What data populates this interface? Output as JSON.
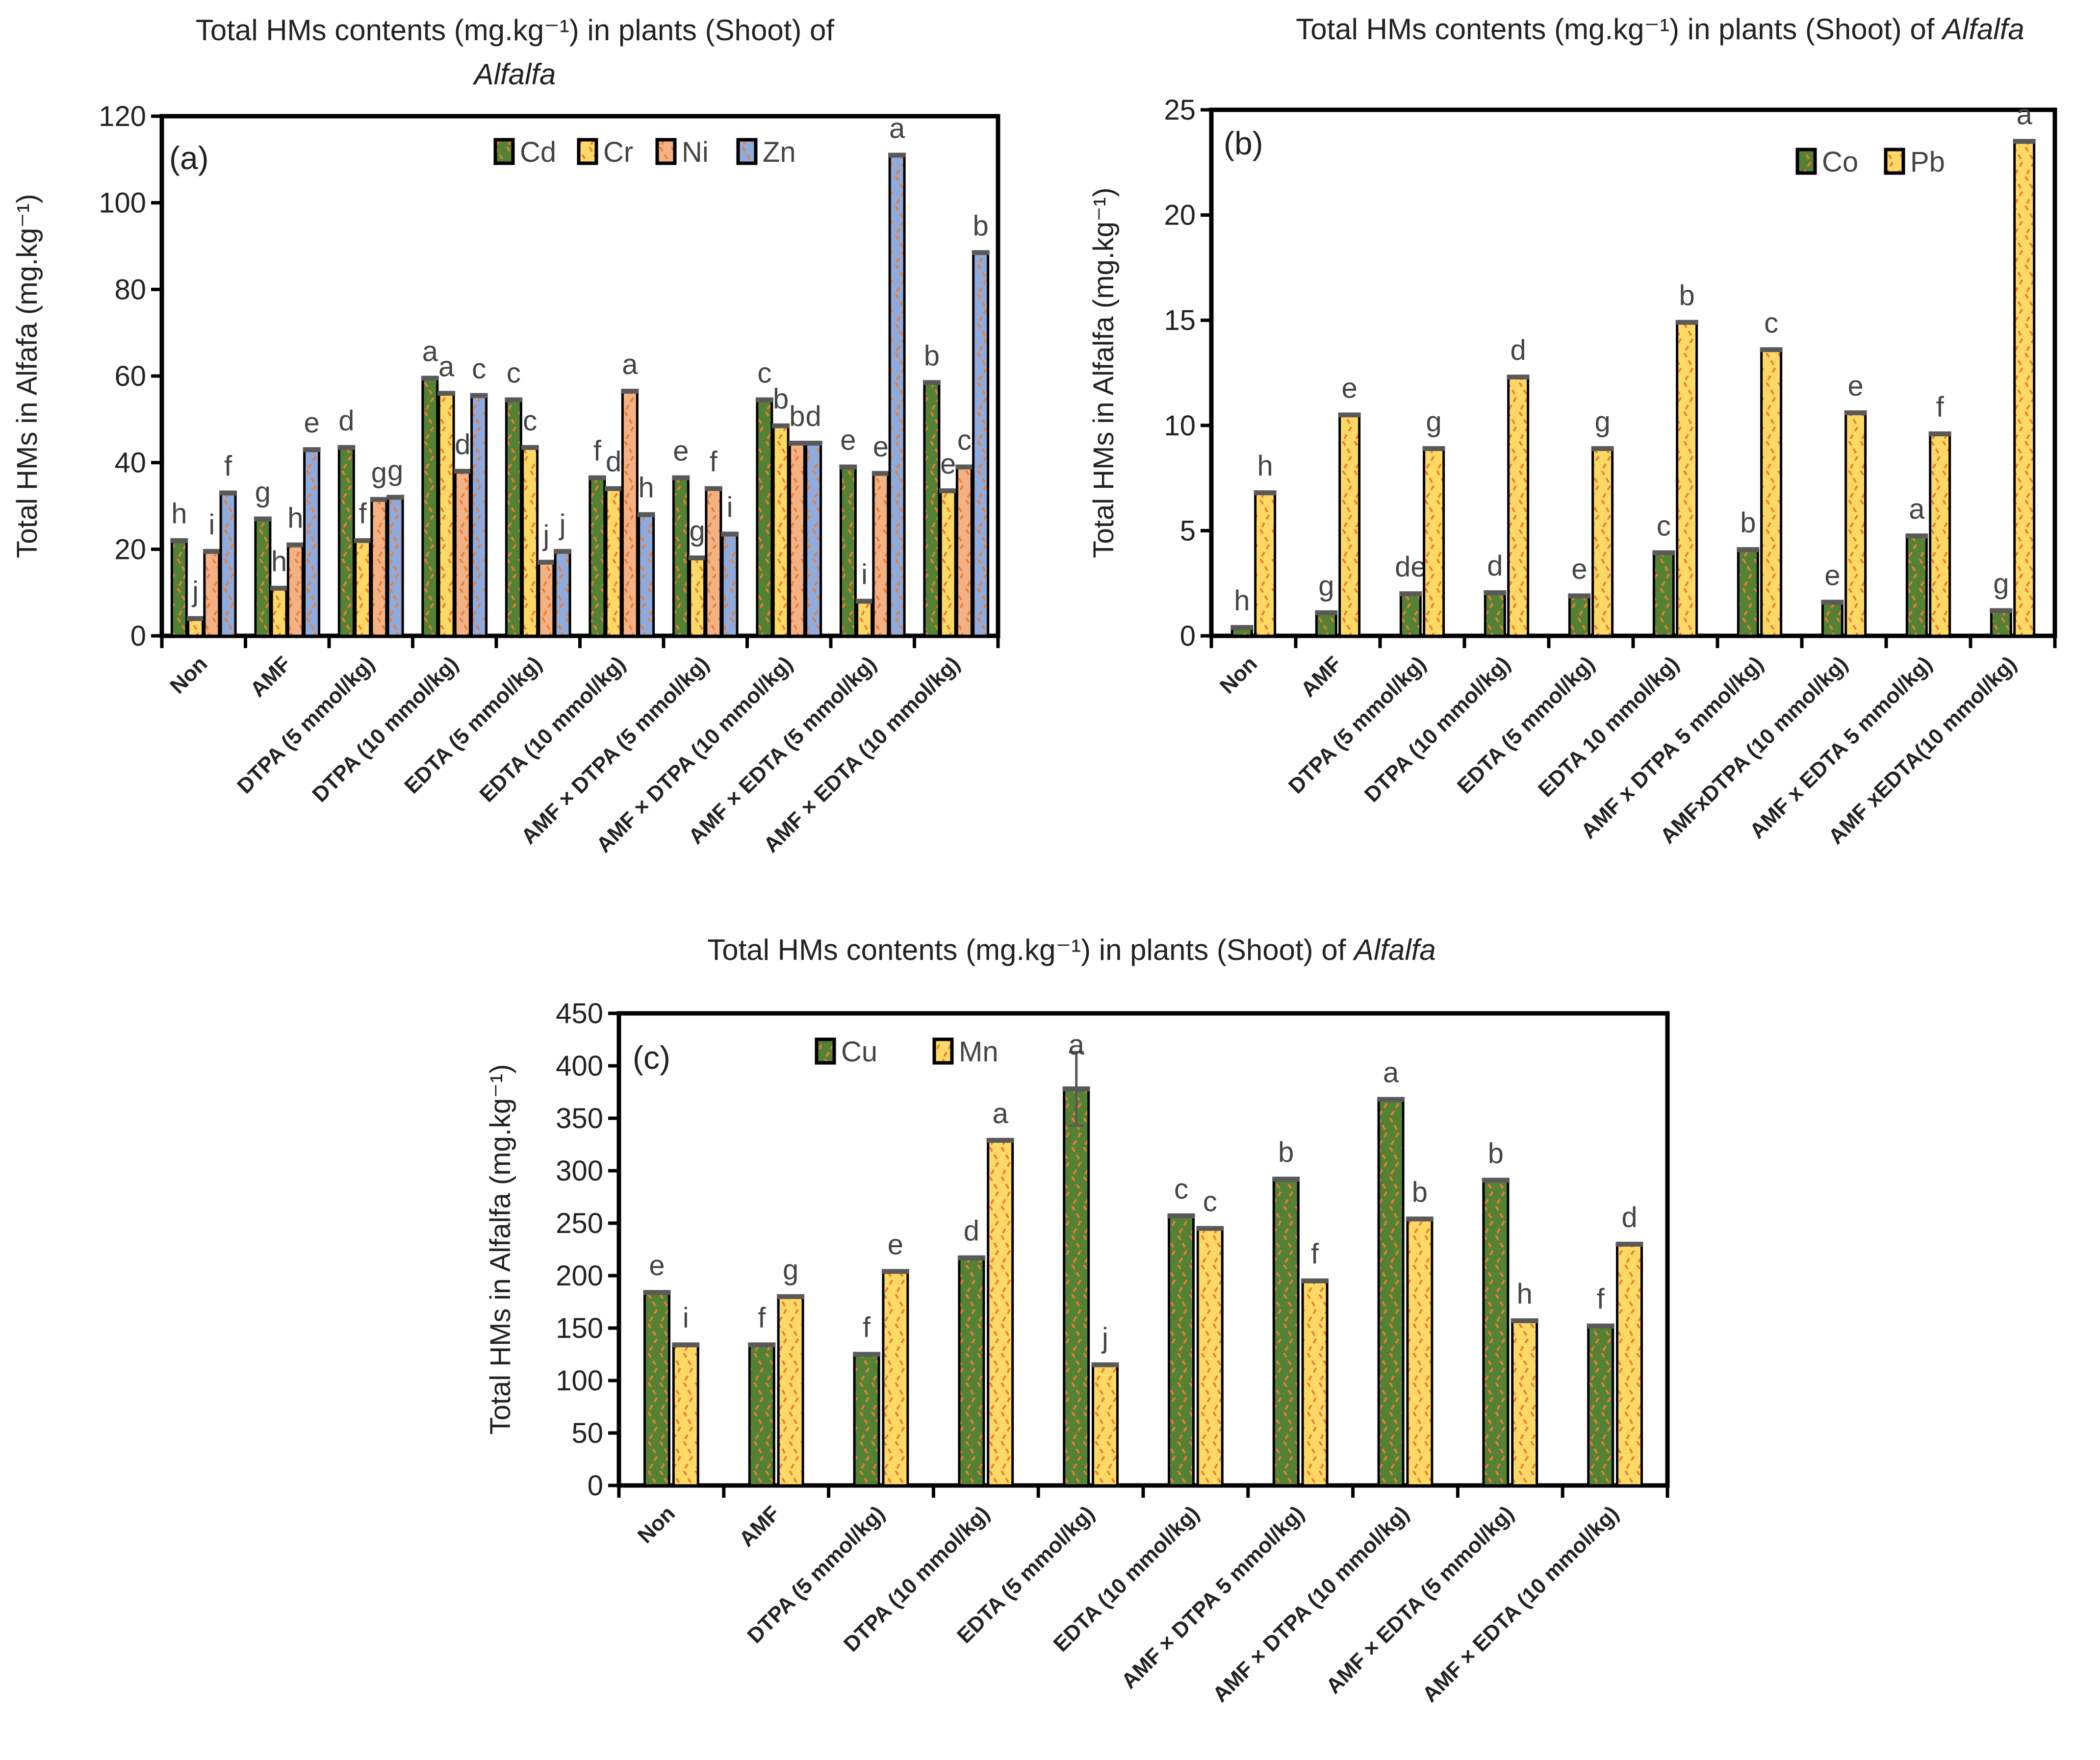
{
  "colors": {
    "Cd": "#548235",
    "Cr": "#FFD966",
    "Ni": "#F4B183",
    "Zn": "#8FAADC",
    "Co": "#548235",
    "Pb": "#FFD966",
    "Cu": "#548235",
    "Mn": "#FFD966",
    "hatch": "#ED7D31",
    "cap": "#595959"
  },
  "chart_data": [
    {
      "type": "bar",
      "panel": "(a)",
      "title_main": "Total HMs contents (mg.kg⁻¹) in plants (Shoot) of",
      "title_italic": "Alfalfa",
      "ylabel": "Total HMs in Alfafa (mg.kg⁻¹)",
      "ylim": [
        0,
        120
      ],
      "yticks": [
        0,
        20,
        40,
        60,
        80,
        100,
        120
      ],
      "legend_placement": "top-center",
      "categories": [
        "Non",
        "AMF",
        "DTPA (5 mmol/kg)",
        "DTPA (10 mmol/kg)",
        "EDTA (5 mmol/kg)",
        "EDTA (10 mmol/kg)",
        "AMF × DTPA (5 mmol/kg)",
        "AMF × DTPA (10 mmol/kg)",
        "AMF × EDTA (5 mmol/kg)",
        "AMF × EDTA (10 mmol/kg)"
      ],
      "series": [
        {
          "name": "Cd",
          "values": [
            22,
            27,
            43.5,
            59.5,
            54.5,
            36.5,
            36.5,
            54.5,
            39,
            58.5
          ],
          "letters": [
            "h",
            "g",
            "d",
            "a",
            "c",
            "f",
            "e",
            "c",
            "e",
            "b"
          ]
        },
        {
          "name": "Cr",
          "values": [
            4,
            11,
            22,
            56,
            43.5,
            34,
            18,
            48.5,
            8,
            33.5
          ],
          "letters": [
            "j",
            "h",
            "f",
            "a",
            "c",
            "d",
            "g",
            "b",
            "i",
            "e"
          ]
        },
        {
          "name": "Ni",
          "values": [
            19.5,
            21,
            31.5,
            38,
            17,
            56.5,
            34,
            44.5,
            37.5,
            39
          ],
          "letters": [
            "i",
            "h",
            "g",
            "d",
            "j",
            "a",
            "f",
            "b",
            "e",
            "c"
          ]
        },
        {
          "name": "Zn",
          "values": [
            33,
            43,
            32,
            55.5,
            19.5,
            28,
            23.5,
            44.5,
            111,
            88.5
          ],
          "letters": [
            "f",
            "e",
            "g",
            "c",
            "j",
            "h",
            "i",
            "d",
            "a",
            "b"
          ]
        }
      ]
    },
    {
      "type": "bar",
      "panel": "(b)",
      "title_main": "Total HMs contents (mg.kg⁻¹) in plants (Shoot) of",
      "title_italic": "Alfalfa",
      "ylabel": "Total HMs in Alfalfa (mg.kg⁻¹)",
      "ylim": [
        0,
        25
      ],
      "yticks": [
        0,
        5,
        10,
        15,
        20,
        25
      ],
      "legend_placement": "top-right",
      "categories": [
        "Non",
        "AMF",
        "DTPA (5 mmol/kg)",
        "DTPA (10 mmol/kg)",
        "EDTA (5 mmol/kg)",
        "EDTA 10 mmol/kg)",
        "AMF x DTPA 5 mmol/kg)",
        "AMFxDTPA (10 mmol/kg)",
        "AMF x EDTA 5 mmol/kg)",
        "AMF xEDTA(10 mmol/kg)"
      ],
      "series": [
        {
          "name": "Co",
          "values": [
            0.4,
            1.1,
            2.0,
            2.05,
            1.9,
            3.95,
            4.1,
            1.6,
            4.75,
            1.2
          ],
          "letters": [
            "h",
            "g",
            "de",
            "d",
            "e",
            "c",
            "b",
            "e",
            "a",
            "g"
          ]
        },
        {
          "name": "Pb",
          "values": [
            6.8,
            10.5,
            8.9,
            12.3,
            8.9,
            14.9,
            13.6,
            10.6,
            9.6,
            23.5
          ],
          "letters": [
            "h",
            "e",
            "g",
            "d",
            "g",
            "b",
            "c",
            "e",
            "f",
            "a"
          ]
        }
      ]
    },
    {
      "type": "bar",
      "panel": "(c)",
      "title_main": "Total HMs contents (mg.kg⁻¹) in plants (Shoot) of",
      "title_italic": "Alfalfa",
      "ylabel": "Total HMs in  Alfalfa (mg.kg⁻¹)",
      "ylim": [
        0,
        450
      ],
      "yticks": [
        0,
        50,
        100,
        150,
        200,
        250,
        300,
        350,
        400,
        450
      ],
      "legend_placement": "top-left",
      "categories": [
        "Non",
        "AMF",
        "DTPA (5 mmol/kg)",
        "DTPA (10 mmol/kg)",
        "EDTA (5 mmol/kg)",
        "EDTA (10 mmol/kg)",
        "AMF × DTPA 5 mmol/kg)",
        "AMF × DTPA (10 mmol/kg)",
        "AMF × EDTA (5 mmol/kg)",
        "AMF × EDTA (10 mmol/kg)"
      ],
      "series": [
        {
          "name": "Cu",
          "values": [
            184,
            134,
            125,
            217,
            378,
            257,
            292,
            368,
            291,
            152
          ],
          "letters": [
            "e",
            "f",
            "f",
            "d",
            "a",
            "c",
            "b",
            "a",
            "b",
            "f"
          ],
          "errors": [
            0,
            0,
            0,
            0,
            35,
            0,
            0,
            0,
            0,
            0
          ]
        },
        {
          "name": "Mn",
          "values": [
            134,
            180,
            204,
            329,
            115,
            245,
            195,
            254,
            157,
            230
          ],
          "letters": [
            "i",
            "g",
            "e",
            "a",
            "j",
            "c",
            "f",
            "b",
            "h",
            "d"
          ]
        }
      ]
    }
  ]
}
